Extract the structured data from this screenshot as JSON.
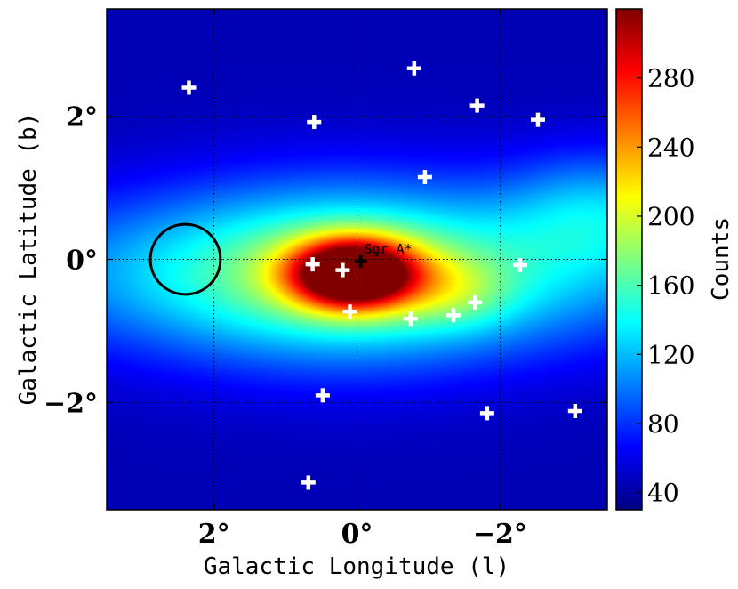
{
  "chart_data": {
    "type": "heatmap",
    "title": "",
    "xlabel": "Galactic Longitude (l)",
    "ylabel": "Galactic Latitude (b)",
    "xlim": [
      3.5,
      -3.5
    ],
    "ylim": [
      -3.5,
      3.5
    ],
    "x_ticks": [
      {
        "value": 2,
        "label": "2°"
      },
      {
        "value": 0,
        "label": "0°"
      },
      {
        "value": -2,
        "label": "−2°"
      }
    ],
    "y_ticks": [
      {
        "value": 2,
        "label": "2°"
      },
      {
        "value": 0,
        "label": "0°"
      },
      {
        "value": -2,
        "label": "−2°"
      }
    ],
    "grid": true,
    "colorbar": {
      "label": "Counts",
      "range": [
        30,
        320
      ],
      "colormap": "jet",
      "ticks": [
        {
          "value": 40,
          "label": "40"
        },
        {
          "value": 80,
          "label": "80"
        },
        {
          "value": 120,
          "label": "120"
        },
        {
          "value": 160,
          "label": "160"
        },
        {
          "value": 200,
          "label": "200"
        },
        {
          "value": 240,
          "label": "240"
        },
        {
          "value": 280,
          "label": "280"
        }
      ]
    },
    "annotation": {
      "text": "Sgr A*",
      "l": -0.1,
      "b": 0.08
    },
    "sgr_a_marker": {
      "l": -0.05,
      "b": -0.03,
      "color": "#000000"
    },
    "circle": {
      "l": 2.4,
      "b": 0.0,
      "radius": 0.49,
      "color": "#000000"
    },
    "sources": [
      {
        "l": 2.35,
        "b": 2.4
      },
      {
        "l": 0.6,
        "b": 1.92
      },
      {
        "l": -0.8,
        "b": 2.67
      },
      {
        "l": -1.68,
        "b": 2.15
      },
      {
        "l": -2.53,
        "b": 1.95
      },
      {
        "l": -0.95,
        "b": 1.15
      },
      {
        "l": 0.62,
        "b": -0.07
      },
      {
        "l": 0.2,
        "b": -0.15
      },
      {
        "l": 0.1,
        "b": -0.73
      },
      {
        "l": -0.75,
        "b": -0.83
      },
      {
        "l": -1.35,
        "b": -0.78
      },
      {
        "l": -1.65,
        "b": -0.6
      },
      {
        "l": -2.28,
        "b": -0.08
      },
      {
        "l": 0.48,
        "b": -1.9
      },
      {
        "l": -1.82,
        "b": -2.15
      },
      {
        "l": -3.05,
        "b": -2.12
      },
      {
        "l": 0.68,
        "b": -3.12
      }
    ],
    "emission": {
      "background": 45,
      "components": [
        {
          "l": 0.05,
          "b": -0.2,
          "sl": 0.6,
          "sb": 0.33,
          "amp": 255
        },
        {
          "l": 0.2,
          "b": -0.2,
          "sl": 1.9,
          "sb": 0.9,
          "amp": 80
        },
        {
          "l": 0.0,
          "b": -0.2,
          "sl": 4.2,
          "sb": 0.8,
          "amp": 70
        },
        {
          "l": -1.4,
          "b": -0.45,
          "sl": 0.55,
          "sb": 0.35,
          "amp": 35
        },
        {
          "l": -3.4,
          "b": 0.7,
          "sl": 0.9,
          "sb": 0.6,
          "amp": 55
        }
      ]
    }
  }
}
